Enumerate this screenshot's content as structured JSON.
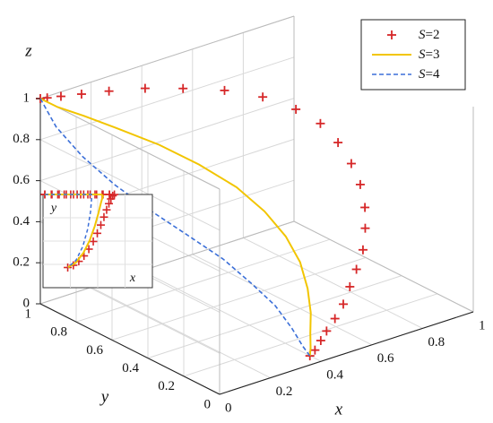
{
  "chart_data": {
    "type": "line",
    "projection": "3d",
    "title": "",
    "xlabel": "x",
    "ylabel": "y",
    "zlabel": "z",
    "xlim": [
      0,
      1
    ],
    "ylim": [
      0,
      1
    ],
    "zlim": [
      0,
      1
    ],
    "x_ticks": [
      "0",
      "0.2",
      "0.4",
      "0.6",
      "0.8",
      "1"
    ],
    "y_ticks": [
      "0",
      "0.2",
      "0.4",
      "0.6",
      "0.8",
      "1"
    ],
    "z_ticks": [
      "0",
      "0.2",
      "0.4",
      "0.6",
      "0.8",
      "1"
    ],
    "grid": true,
    "legend_position": "top-right",
    "series": [
      {
        "name": "S=2",
        "legend_var": "S",
        "legend_val": "=2",
        "color": "#d62728",
        "style": "plus-markers",
        "x": [
          0.0,
          0.02,
          0.06,
          0.12,
          0.2,
          0.3,
          0.4,
          0.5,
          0.58,
          0.64,
          0.68,
          0.7,
          0.71,
          0.71,
          0.7,
          0.68,
          0.65,
          0.61,
          0.57,
          0.53,
          0.49,
          0.45,
          0.42,
          0.39,
          0.37
        ],
        "y": [
          1.0,
          0.99,
          0.97,
          0.94,
          0.9,
          0.84,
          0.77,
          0.68,
          0.58,
          0.48,
          0.4,
          0.33,
          0.27,
          0.22,
          0.18,
          0.15,
          0.12,
          0.1,
          0.08,
          0.06,
          0.05,
          0.04,
          0.03,
          0.02,
          0.02
        ],
        "z": [
          1.0,
          1.0,
          1.0,
          1.0,
          1.0,
          1.0,
          0.99,
          0.98,
          0.96,
          0.92,
          0.87,
          0.8,
          0.72,
          0.64,
          0.55,
          0.47,
          0.39,
          0.32,
          0.26,
          0.2,
          0.15,
          0.11,
          0.08,
          0.05,
          0.03
        ]
      },
      {
        "name": "S=3",
        "legend_var": "S",
        "legend_val": "=3",
        "color": "#f2c500",
        "style": "solid",
        "x": [
          0.0,
          0.04,
          0.1,
          0.18,
          0.27,
          0.35,
          0.42,
          0.46,
          0.48,
          0.48,
          0.46,
          0.43,
          0.4,
          0.38,
          0.37
        ],
        "y": [
          1.0,
          0.96,
          0.9,
          0.82,
          0.72,
          0.61,
          0.5,
          0.4,
          0.31,
          0.23,
          0.16,
          0.1,
          0.06,
          0.03,
          0.02
        ],
        "z": [
          1.0,
          0.96,
          0.92,
          0.86,
          0.79,
          0.71,
          0.62,
          0.53,
          0.44,
          0.35,
          0.26,
          0.18,
          0.11,
          0.06,
          0.03
        ]
      },
      {
        "name": "S=4",
        "legend_var": "S",
        "legend_val": "=4",
        "color": "#3b6fd8",
        "style": "dashed",
        "x": [
          0.0,
          0.02,
          0.06,
          0.11,
          0.17,
          0.23,
          0.29,
          0.33,
          0.36,
          0.37,
          0.37,
          0.37
        ],
        "y": [
          1.0,
          0.94,
          0.85,
          0.74,
          0.62,
          0.5,
          0.39,
          0.29,
          0.2,
          0.12,
          0.06,
          0.02
        ],
        "z": [
          1.0,
          0.88,
          0.76,
          0.65,
          0.55,
          0.46,
          0.37,
          0.28,
          0.2,
          0.12,
          0.06,
          0.03
        ]
      }
    ],
    "inset": {
      "xlabel": "x",
      "ylabel": "y",
      "description_of_view": "projection onto x-y plane"
    }
  }
}
